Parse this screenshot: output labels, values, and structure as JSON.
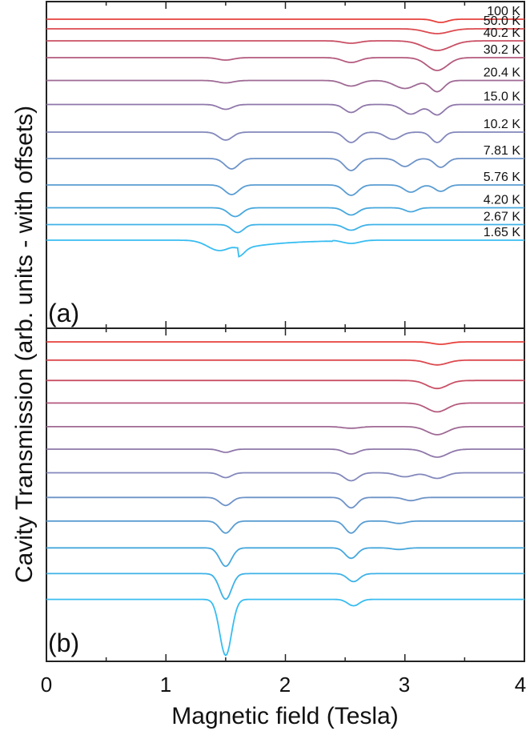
{
  "figure": {
    "ylabel": "Cavity Transmission (arb. units - with offsets)",
    "xlabel": "Magnetic field (Tesla)",
    "xticks": [
      "0",
      "1",
      "2",
      "3",
      "4"
    ]
  },
  "chart_data": [
    {
      "panel": "(a)",
      "type": "line",
      "description_source": "measured spectra, offset vertically",
      "xlim": [
        0,
        4
      ],
      "temperatures": [
        "100 K",
        "50.0 K",
        "40.2 K",
        "30.2 K",
        "20.4 K",
        "15.0 K",
        "10.2 K",
        "7.81 K",
        "5.76 K",
        "4.20 K",
        "2.67 K",
        "1.65 K"
      ],
      "colors": [
        "#e8413c",
        "#dc4a4f",
        "#c95065",
        "#b45a7e",
        "#9f6a95",
        "#8f77aa",
        "#8388bb",
        "#6e93c7",
        "#5a9dd2",
        "#47a8dd",
        "#3fb2e8",
        "#38bdf1"
      ],
      "baselines": [
        0.0,
        0.4,
        0.9,
        1.6,
        2.55,
        3.55,
        4.7,
        5.8,
        6.9,
        7.85,
        8.55,
        9.2
      ],
      "dips": [
        [
          [
            3.3,
            0.08,
            0.4
          ]
        ],
        [
          [
            3.27,
            0.14,
            0.6
          ]
        ],
        [
          [
            2.55,
            0.1,
            0.3
          ],
          [
            3.27,
            0.16,
            1.2
          ]
        ],
        [
          [
            1.5,
            0.09,
            0.3
          ],
          [
            2.55,
            0.1,
            0.6
          ],
          [
            3.27,
            0.12,
            1.6
          ]
        ],
        [
          [
            1.5,
            0.09,
            0.3
          ],
          [
            2.55,
            0.1,
            0.7
          ],
          [
            3.0,
            0.12,
            1.0
          ],
          [
            3.27,
            0.08,
            1.4
          ]
        ],
        [
          [
            1.5,
            0.08,
            0.6
          ],
          [
            2.55,
            0.08,
            1.0
          ],
          [
            3.05,
            0.1,
            1.2
          ],
          [
            3.27,
            0.08,
            1.3
          ]
        ],
        [
          [
            1.5,
            0.08,
            1.0
          ],
          [
            2.55,
            0.08,
            1.3
          ],
          [
            2.9,
            0.09,
            0.9
          ],
          [
            3.27,
            0.07,
            1.3
          ]
        ],
        [
          [
            1.55,
            0.08,
            1.3
          ],
          [
            2.55,
            0.08,
            1.5
          ],
          [
            3.0,
            0.08,
            1.0
          ],
          [
            3.3,
            0.07,
            1.1
          ]
        ],
        [
          [
            1.55,
            0.08,
            1.2
          ],
          [
            2.55,
            0.08,
            1.3
          ],
          [
            3.05,
            0.08,
            0.9
          ],
          [
            3.3,
            0.07,
            0.8
          ]
        ],
        [
          [
            1.58,
            0.08,
            1.1
          ],
          [
            2.55,
            0.08,
            0.9
          ],
          [
            3.05,
            0.07,
            0.5
          ]
        ],
        [
          [
            1.6,
            0.07,
            1.0
          ],
          [
            2.55,
            0.08,
            0.7
          ]
        ],
        [
          [
            1.45,
            0.14,
            1.3
          ],
          [
            1.62,
            0.06,
            0.6
          ],
          [
            2.55,
            0.1,
            0.4
          ]
        ]
      ]
    },
    {
      "panel": "(b)",
      "type": "line",
      "description_source": "simulated spectra, offset vertically",
      "xlim": [
        0,
        4
      ],
      "colors": [
        "#e8413c",
        "#dc4a4f",
        "#c95065",
        "#b45a7e",
        "#9f6a95",
        "#8f77aa",
        "#8388bb",
        "#6e93c7",
        "#5a9dd2",
        "#47a8dd",
        "#3fb2e8",
        "#38bdf1"
      ],
      "baselines": [
        0.0,
        0.85,
        1.8,
        2.85,
        3.95,
        5.0,
        6.1,
        7.25,
        8.35,
        9.6,
        10.8,
        12.0
      ],
      "dips": [
        [
          [
            3.3,
            0.1,
            0.3
          ]
        ],
        [
          [
            3.27,
            0.12,
            0.6
          ]
        ],
        [
          [
            3.27,
            0.12,
            1.0
          ]
        ],
        [
          [
            3.27,
            0.12,
            1.1
          ]
        ],
        [
          [
            2.55,
            0.1,
            0.2
          ],
          [
            3.27,
            0.12,
            1.0
          ]
        ],
        [
          [
            1.5,
            0.07,
            0.4
          ],
          [
            2.55,
            0.08,
            0.6
          ],
          [
            3.27,
            0.12,
            1.0
          ]
        ],
        [
          [
            1.5,
            0.07,
            0.6
          ],
          [
            2.55,
            0.08,
            1.0
          ],
          [
            3.0,
            0.1,
            0.5
          ],
          [
            3.27,
            0.1,
            0.7
          ]
        ],
        [
          [
            1.5,
            0.07,
            1.0
          ],
          [
            2.55,
            0.07,
            1.3
          ],
          [
            3.05,
            0.08,
            0.4
          ]
        ],
        [
          [
            1.5,
            0.07,
            1.5
          ],
          [
            2.55,
            0.07,
            1.5
          ],
          [
            2.95,
            0.08,
            0.3
          ]
        ],
        [
          [
            1.5,
            0.07,
            2.3
          ],
          [
            2.55,
            0.07,
            1.3
          ],
          [
            2.95,
            0.08,
            0.2
          ]
        ],
        [
          [
            1.5,
            0.07,
            3.2
          ],
          [
            2.57,
            0.07,
            1.0
          ]
        ],
        [
          [
            1.5,
            0.07,
            7.0
          ],
          [
            2.57,
            0.07,
            0.8
          ]
        ]
      ]
    }
  ]
}
